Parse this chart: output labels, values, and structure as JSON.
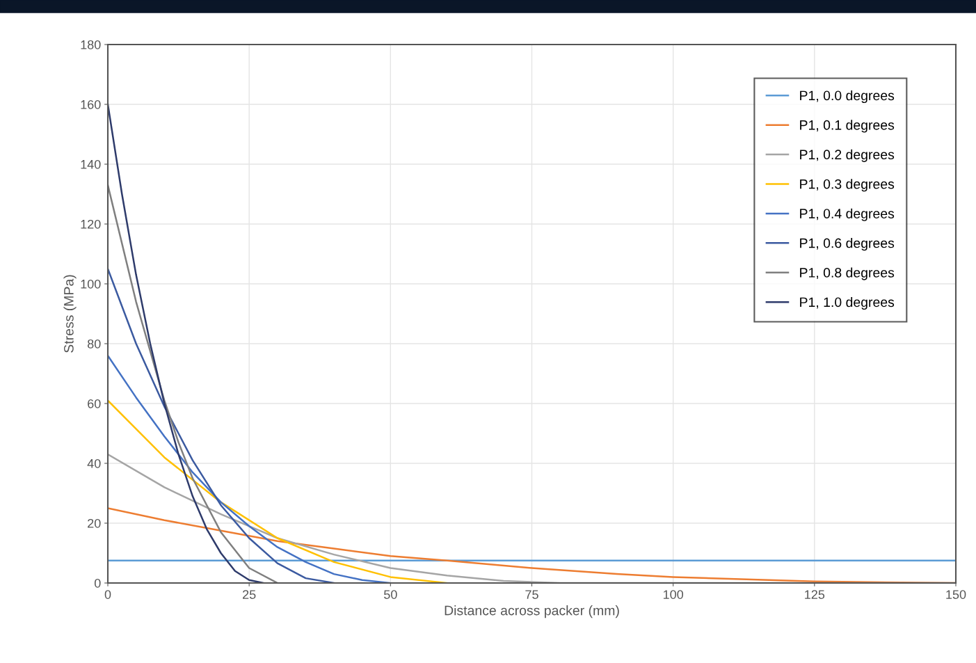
{
  "chart_data": {
    "type": "line",
    "xlabel": "Distance across packer (mm)",
    "ylabel": "Stress (MPa)",
    "xlim": [
      0,
      150
    ],
    "xticks": [
      0,
      25,
      50,
      75,
      100,
      125,
      150
    ],
    "ylim": [
      0,
      180
    ],
    "yticks": [
      0,
      20,
      40,
      60,
      80,
      100,
      120,
      140,
      160,
      180
    ],
    "grid": true,
    "legend": "top right",
    "marker": "none",
    "line_style": "solid",
    "series": [
      {
        "name": "P1, 0.0 degrees",
        "color": "#5b9bd5",
        "x": [
          0,
          150
        ],
        "values": [
          7.5,
          7.5
        ]
      },
      {
        "name": "P1, 0.1 degrees",
        "color": "#ed7d31",
        "x": [
          0,
          10,
          20,
          30,
          40,
          50,
          60,
          75,
          90,
          100,
          125,
          150
        ],
        "values": [
          25,
          21,
          17.5,
          14,
          11.5,
          9,
          7.5,
          5,
          3,
          2,
          0.5,
          0
        ]
      },
      {
        "name": "P1, 0.2 degrees",
        "color": "#a5a5a5",
        "x": [
          0,
          10,
          20,
          30,
          40,
          50,
          60,
          70,
          80,
          150
        ],
        "values": [
          43,
          32,
          23,
          15,
          9.5,
          5,
          2.5,
          0.7,
          0,
          0
        ]
      },
      {
        "name": "P1, 0.3 degrees",
        "color": "#ffc000",
        "x": [
          0,
          10,
          20,
          30,
          40,
          50,
          60
        ],
        "values": [
          61,
          42,
          27,
          15,
          7,
          2,
          0
        ]
      },
      {
        "name": "P1, 0.4 degrees",
        "color": "#4472c4",
        "x": [
          0,
          5,
          10,
          15,
          20,
          25,
          30,
          35,
          40,
          45,
          50
        ],
        "values": [
          76,
          62,
          49,
          37,
          27,
          19,
          12,
          7,
          3,
          1,
          0
        ]
      },
      {
        "name": "P1, 0.6 degrees",
        "color": "#3b5aa0",
        "x": [
          0,
          5,
          10,
          15,
          20,
          25,
          30,
          35,
          40
        ],
        "values": [
          105,
          80,
          59,
          41,
          26,
          15,
          6.6,
          1.6,
          0
        ]
      },
      {
        "name": "P1, 0.8 degrees",
        "color": "#7f7f7f",
        "x": [
          0,
          5,
          10,
          12.5,
          15,
          20,
          25,
          30
        ],
        "values": [
          133,
          94,
          61,
          47,
          35,
          17,
          5,
          0
        ]
      },
      {
        "name": "P1, 1.0 degrees",
        "color": "#2e3b6b",
        "x": [
          0,
          2.5,
          5,
          7.5,
          10,
          12.5,
          15,
          17.5,
          20,
          22.5,
          25,
          27.5
        ],
        "values": [
          160,
          130,
          103,
          80,
          60,
          43,
          29,
          18,
          10,
          4,
          1,
          0
        ]
      }
    ]
  }
}
